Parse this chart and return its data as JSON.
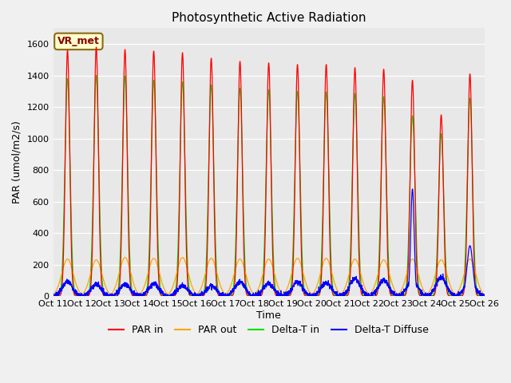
{
  "title": "Photosynthetic Active Radiation",
  "ylabel": "PAR (umol/m2/s)",
  "xlabel": "Time",
  "annotation": "VR_met",
  "ylim": [
    0,
    1700
  ],
  "yticks": [
    0,
    200,
    400,
    600,
    800,
    1000,
    1200,
    1400,
    1600
  ],
  "xtick_labels": [
    "Oct 11",
    "Oct 12",
    "Oct 13",
    "Oct 14",
    "Oct 15",
    "Oct 16",
    "Oct 17",
    "Oct 18",
    "Oct 19",
    "Oct 20",
    "Oct 21",
    "Oct 22",
    "Oct 23",
    "Oct 24",
    "Oct 25",
    "Oct 26"
  ],
  "background_color": "#e8e8e8",
  "colors": {
    "PAR_in": "#ff0000",
    "PAR_out": "#ffa500",
    "Delta_T_in": "#00dd00",
    "Delta_T_Diffuse": "#0000ff"
  },
  "legend_labels": [
    "PAR in",
    "PAR out",
    "Delta-T in",
    "Delta-T Diffuse"
  ],
  "peak_PAR_in": [
    1560,
    1580,
    1565,
    1555,
    1545,
    1510,
    1490,
    1480,
    1470,
    1470,
    1450,
    1440,
    1370,
    1150,
    1410
  ],
  "peak_PAR_out": [
    235,
    230,
    245,
    240,
    245,
    240,
    235,
    235,
    240,
    240,
    235,
    230,
    235,
    230,
    235
  ],
  "peak_Delta_T_in": [
    1380,
    1400,
    1395,
    1370,
    1360,
    1340,
    1320,
    1310,
    1300,
    1295,
    1285,
    1265,
    1145,
    1030,
    1255
  ],
  "diffuse_day_level": [
    90,
    75,
    75,
    80,
    65,
    65,
    90,
    80,
    90,
    85,
    110,
    100,
    100,
    120,
    100
  ],
  "diffuse_spike_day": 12,
  "diffuse_spike_val": 680,
  "n_days": 15,
  "points_per_day": 200
}
